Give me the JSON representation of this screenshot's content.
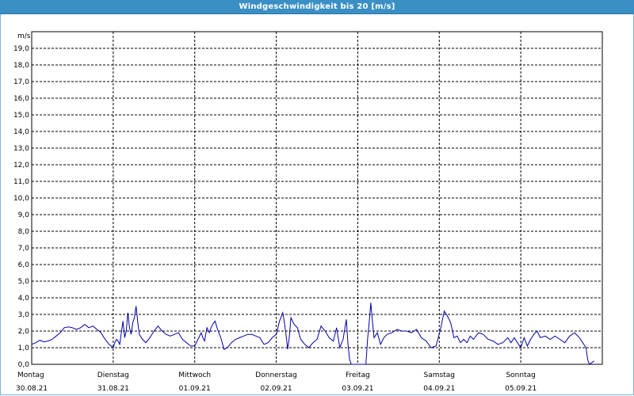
{
  "window": {
    "title": "Windgeschwindigkeit bis 20 [m/s]"
  },
  "colors": {
    "title_bar": "#3a8fc4",
    "series": "#0000aa",
    "grid": "#000000"
  },
  "chart_data": {
    "type": "line",
    "title": "Windgeschwindigkeit bis 20 [m/s]",
    "ylabel": "m/s",
    "ylim": [
      0,
      20
    ],
    "xlim": [
      0,
      7
    ],
    "y_ticks": [
      "0,0",
      "1,0",
      "2,0",
      "3,0",
      "4,0",
      "5,0",
      "6,0",
      "7,0",
      "8,0",
      "9,0",
      "10,0",
      "11,0",
      "12,0",
      "13,0",
      "14,0",
      "15,0",
      "16,0",
      "17,0",
      "18,0",
      "19,0"
    ],
    "x_ticks": [
      {
        "day": "Montag",
        "date": "30.08.21"
      },
      {
        "day": "Dienstag",
        "date": "31.08.21"
      },
      {
        "day": "Mittwoch",
        "date": "01.09.21"
      },
      {
        "day": "Donnerstag",
        "date": "02.09.21"
      },
      {
        "day": "Freitag",
        "date": "03.09.21"
      },
      {
        "day": "Samstag",
        "date": "04.09.21"
      },
      {
        "day": "Sonntag",
        "date": "05.09.21"
      }
    ],
    "grid": true,
    "series": [
      {
        "x_unit": "days since 30.08.21 00:00",
        "points": [
          [
            0.0,
            1.2
          ],
          [
            0.05,
            1.3
          ],
          [
            0.1,
            1.45
          ],
          [
            0.15,
            1.35
          ],
          [
            0.2,
            1.4
          ],
          [
            0.25,
            1.5
          ],
          [
            0.3,
            1.7
          ],
          [
            0.35,
            1.9
          ],
          [
            0.4,
            2.2
          ],
          [
            0.45,
            2.25
          ],
          [
            0.5,
            2.2
          ],
          [
            0.55,
            2.1
          ],
          [
            0.6,
            2.2
          ],
          [
            0.65,
            2.4
          ],
          [
            0.7,
            2.2
          ],
          [
            0.75,
            2.3
          ],
          [
            0.8,
            2.1
          ],
          [
            0.85,
            1.9
          ],
          [
            0.9,
            1.5
          ],
          [
            0.95,
            1.2
          ],
          [
            1.0,
            1.0
          ],
          [
            1.02,
            1.3
          ],
          [
            1.04,
            1.5
          ],
          [
            1.06,
            1.4
          ],
          [
            1.08,
            1.2
          ],
          [
            1.1,
            1.9
          ],
          [
            1.12,
            2.6
          ],
          [
            1.14,
            1.6
          ],
          [
            1.16,
            2.0
          ],
          [
            1.18,
            3.1
          ],
          [
            1.2,
            2.2
          ],
          [
            1.22,
            1.8
          ],
          [
            1.24,
            2.5
          ],
          [
            1.26,
            2.8
          ],
          [
            1.28,
            3.5
          ],
          [
            1.3,
            2.6
          ],
          [
            1.32,
            1.8
          ],
          [
            1.36,
            1.5
          ],
          [
            1.4,
            1.3
          ],
          [
            1.45,
            1.6
          ],
          [
            1.5,
            2.0
          ],
          [
            1.55,
            2.3
          ],
          [
            1.6,
            2.0
          ],
          [
            1.65,
            1.8
          ],
          [
            1.7,
            1.7
          ],
          [
            1.75,
            1.8
          ],
          [
            1.8,
            1.9
          ],
          [
            1.85,
            1.5
          ],
          [
            1.9,
            1.3
          ],
          [
            1.95,
            1.1
          ],
          [
            2.0,
            1.1
          ],
          [
            2.04,
            1.5
          ],
          [
            2.08,
            1.9
          ],
          [
            2.1,
            1.6
          ],
          [
            2.12,
            1.4
          ],
          [
            2.15,
            2.2
          ],
          [
            2.18,
            1.9
          ],
          [
            2.2,
            2.2
          ],
          [
            2.22,
            2.4
          ],
          [
            2.25,
            2.6
          ],
          [
            2.28,
            2.1
          ],
          [
            2.32,
            1.6
          ],
          [
            2.36,
            0.9
          ],
          [
            2.4,
            1.0
          ],
          [
            2.45,
            1.3
          ],
          [
            2.5,
            1.5
          ],
          [
            2.55,
            1.6
          ],
          [
            2.6,
            1.7
          ],
          [
            2.65,
            1.8
          ],
          [
            2.7,
            1.8
          ],
          [
            2.75,
            1.7
          ],
          [
            2.8,
            1.6
          ],
          [
            2.85,
            1.2
          ],
          [
            2.9,
            1.3
          ],
          [
            2.95,
            1.6
          ],
          [
            3.0,
            1.8
          ],
          [
            3.04,
            2.6
          ],
          [
            3.08,
            3.1
          ],
          [
            3.1,
            2.5
          ],
          [
            3.12,
            1.8
          ],
          [
            3.14,
            0.9
          ],
          [
            3.16,
            1.6
          ],
          [
            3.18,
            2.8
          ],
          [
            3.22,
            2.4
          ],
          [
            3.26,
            2.2
          ],
          [
            3.3,
            1.5
          ],
          [
            3.35,
            1.2
          ],
          [
            3.4,
            1.0
          ],
          [
            3.45,
            1.3
          ],
          [
            3.5,
            1.5
          ],
          [
            3.55,
            2.3
          ],
          [
            3.6,
            2.0
          ],
          [
            3.65,
            1.6
          ],
          [
            3.7,
            1.4
          ],
          [
            3.74,
            2.2
          ],
          [
            3.78,
            1.0
          ],
          [
            3.82,
            1.5
          ],
          [
            3.86,
            2.7
          ],
          [
            3.88,
            1.2
          ],
          [
            3.9,
            0.3
          ],
          [
            3.92,
            0.0
          ],
          [
            4.1,
            0.0
          ],
          [
            4.12,
            1.5
          ],
          [
            4.14,
            2.5
          ],
          [
            4.16,
            3.7
          ],
          [
            4.18,
            2.6
          ],
          [
            4.2,
            1.6
          ],
          [
            4.24,
            1.9
          ],
          [
            4.28,
            1.2
          ],
          [
            4.32,
            1.6
          ],
          [
            4.36,
            1.8
          ],
          [
            4.42,
            1.9
          ],
          [
            4.48,
            2.1
          ],
          [
            4.54,
            2.0
          ],
          [
            4.6,
            2.0
          ],
          [
            4.66,
            1.9
          ],
          [
            4.72,
            2.1
          ],
          [
            4.78,
            1.6
          ],
          [
            4.84,
            1.4
          ],
          [
            4.9,
            1.0
          ],
          [
            4.96,
            1.1
          ],
          [
            5.02,
            2.2
          ],
          [
            5.06,
            3.2
          ],
          [
            5.1,
            2.9
          ],
          [
            5.14,
            2.5
          ],
          [
            5.18,
            1.6
          ],
          [
            5.22,
            1.7
          ],
          [
            5.26,
            1.3
          ],
          [
            5.3,
            1.5
          ],
          [
            5.34,
            1.3
          ],
          [
            5.38,
            1.7
          ],
          [
            5.42,
            1.5
          ],
          [
            5.48,
            1.9
          ],
          [
            5.54,
            1.8
          ],
          [
            5.6,
            1.5
          ],
          [
            5.66,
            1.4
          ],
          [
            5.72,
            1.2
          ],
          [
            5.78,
            1.3
          ],
          [
            5.84,
            1.6
          ],
          [
            5.88,
            1.3
          ],
          [
            5.92,
            1.6
          ],
          [
            5.96,
            1.3
          ],
          [
            6.0,
            1.0
          ],
          [
            6.04,
            1.6
          ],
          [
            6.08,
            1.1
          ],
          [
            6.12,
            1.5
          ],
          [
            6.16,
            1.8
          ],
          [
            6.2,
            2.0
          ],
          [
            6.24,
            1.6
          ],
          [
            6.3,
            1.7
          ],
          [
            6.36,
            1.5
          ],
          [
            6.42,
            1.7
          ],
          [
            6.48,
            1.5
          ],
          [
            6.54,
            1.3
          ],
          [
            6.6,
            1.7
          ],
          [
            6.66,
            1.9
          ],
          [
            6.72,
            1.6
          ],
          [
            6.76,
            1.3
          ],
          [
            6.8,
            1.0
          ],
          [
            6.82,
            0.3
          ],
          [
            6.84,
            0.0
          ],
          [
            6.87,
            0.1
          ],
          [
            6.9,
            0.2
          ]
        ]
      }
    ]
  }
}
